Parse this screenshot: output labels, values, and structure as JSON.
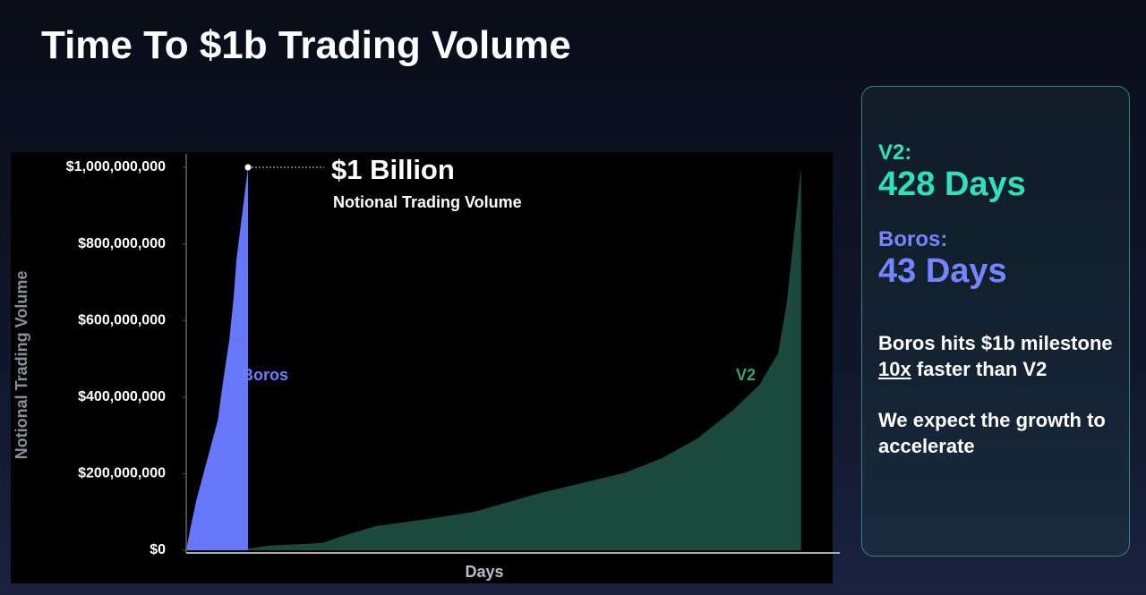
{
  "title": "Time To $1b Trading Volume",
  "chart_data": {
    "type": "area",
    "y_label": "Notional Trading Volume",
    "x_label": "Days",
    "annotation": {
      "title": "$1 Billion",
      "subtitle": "Notional Trading Volume"
    },
    "xlim": [
      0,
      450
    ],
    "ylim": [
      0,
      1000000000
    ],
    "yticks": [
      {
        "value": 0,
        "label": "$0"
      },
      {
        "value": 200000000,
        "label": "$200,000,000"
      },
      {
        "value": 400000000,
        "label": "$400,000,000"
      },
      {
        "value": 600000000,
        "label": "$600,000,000"
      },
      {
        "value": 800000000,
        "label": "$800,000,000"
      },
      {
        "value": 1000000000,
        "label": "$1,000,000,000"
      }
    ],
    "series": [
      {
        "name": "V2",
        "color": "#1b4a3c",
        "x": [
          0,
          45,
          57,
          95,
          107,
          132,
          169,
          200,
          244,
          275,
          306,
          331,
          356,
          381,
          399,
          412,
          418,
          424,
          428
        ],
        "values": [
          0,
          5000000,
          12000000,
          19000000,
          35000000,
          63000000,
          82000000,
          100000000,
          147000000,
          175000000,
          203000000,
          240000000,
          292000000,
          367000000,
          432000000,
          514000000,
          643000000,
          853000000,
          1000000000
        ]
      },
      {
        "name": "Boros",
        "color": "#6677fa",
        "x": [
          0,
          3,
          7,
          12,
          17,
          22,
          26,
          30,
          33,
          35,
          39,
          43
        ],
        "values": [
          0,
          60000000,
          130000000,
          200000000,
          270000000,
          340000000,
          450000000,
          550000000,
          660000000,
          760000000,
          880000000,
          1000000000
        ]
      }
    ]
  },
  "sidebar": {
    "v2_label": "V2:",
    "v2_value": "428 Days",
    "boros_label": "Boros:",
    "boros_value": "43 Days",
    "note_parts": [
      "Boros hits $1b milestone ",
      "10x",
      " faster than V2"
    ],
    "outlook": "We expect the growth to accelerate"
  }
}
